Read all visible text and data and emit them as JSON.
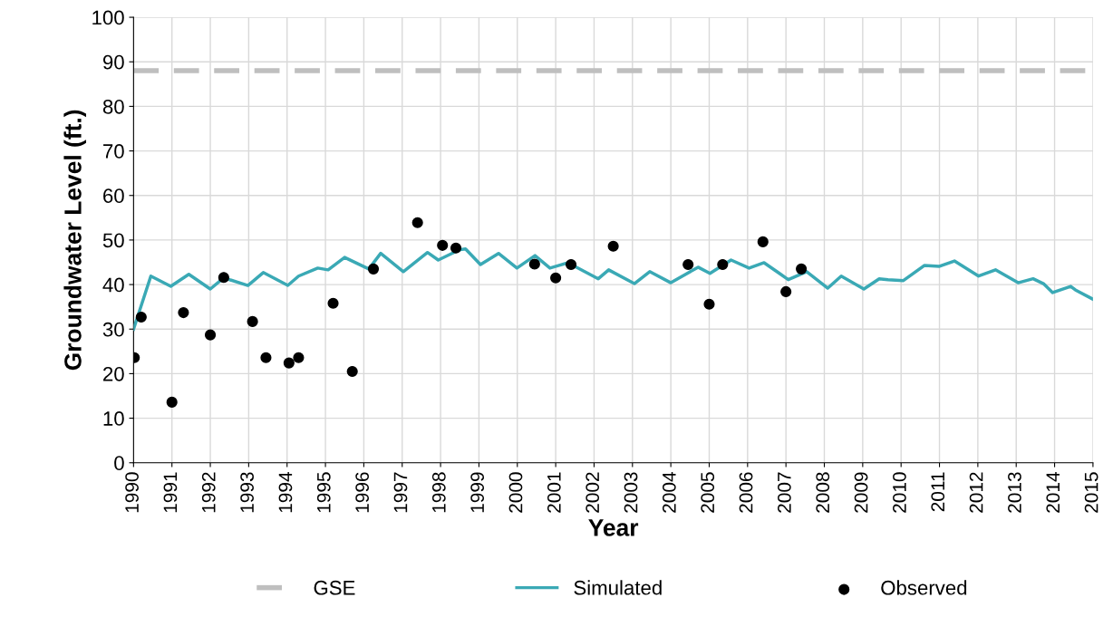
{
  "chart_data": {
    "type": "line",
    "xlabel": "Year",
    "ylabel": "Groundwater Level (ft.)",
    "xlim": [
      1990,
      2015
    ],
    "xticks": [
      1990,
      1991,
      1992,
      1993,
      1994,
      1995,
      1996,
      1997,
      1998,
      1999,
      2000,
      2001,
      2002,
      2003,
      2004,
      2005,
      2006,
      2007,
      2008,
      2009,
      2010,
      2011,
      2012,
      2013,
      2014,
      2015
    ],
    "ylim": [
      0,
      100
    ],
    "yticks": [
      0,
      10,
      20,
      30,
      40,
      50,
      60,
      70,
      80,
      90,
      100
    ],
    "grid": true,
    "legend": "bottom",
    "ref_lines": [
      {
        "axis": "y",
        "value": 88,
        "label": "GSE",
        "color": "#bfbfbf",
        "line_style": "dashed"
      }
    ],
    "series": [
      {
        "name": "Simulated",
        "color": "#3aa9b5",
        "marker": "none",
        "line_style": "solid",
        "x": [
          1990.0,
          1990.45,
          1990.97,
          1991.44,
          1992.0,
          1992.35,
          1992.98,
          1993.38,
          1994.02,
          1994.3,
          1994.8,
          1995.07,
          1995.5,
          1996.13,
          1996.44,
          1997.03,
          1997.66,
          1997.94,
          1998.49,
          1998.65,
          1999.04,
          1999.51,
          1999.99,
          2000.46,
          2000.85,
          2001.09,
          2001.32,
          2002.11,
          2002.38,
          2003.05,
          2003.45,
          2004.0,
          2004.71,
          2005.02,
          2005.57,
          2006.04,
          2006.43,
          2006.83,
          2007.06,
          2007.54,
          2008.09,
          2008.44,
          2009.03,
          2009.43,
          2009.66,
          2010.06,
          2010.61,
          2011.0,
          2011.39,
          2012.02,
          2012.46,
          2013.05,
          2013.44,
          2013.71,
          2013.95,
          2014.42,
          2014.54,
          2014.98
        ],
        "values": [
          30,
          41.9,
          39.6,
          42.3,
          39.0,
          41.5,
          39.8,
          42.7,
          39.8,
          41.9,
          43.7,
          43.3,
          46.1,
          43.5,
          47.0,
          42.9,
          47.2,
          45.5,
          47.8,
          48.0,
          44.5,
          47.0,
          43.7,
          46.5,
          43.7,
          44.3,
          44.9,
          41.3,
          43.3,
          40.2,
          42.9,
          40.4,
          43.9,
          42.5,
          45.5,
          43.7,
          44.9,
          42.5,
          41.1,
          42.9,
          39.2,
          41.9,
          39.0,
          41.3,
          41.1,
          40.9,
          44.3,
          44.1,
          45.3,
          41.9,
          43.3,
          40.4,
          41.3,
          40.2,
          38.2,
          39.6,
          38.8,
          36.8
        ]
      },
      {
        "name": "Observed",
        "type": "scatter",
        "color": "#000000",
        "marker": "circle",
        "x": [
          1990.02,
          1990.2,
          1991.0,
          1991.3,
          1992.0,
          1992.35,
          1993.1,
          1993.45,
          1994.05,
          1994.3,
          1995.2,
          1995.7,
          1996.25,
          1997.4,
          1998.05,
          1998.4,
          2000.45,
          2001.0,
          2001.4,
          2002.5,
          2004.45,
          2005.0,
          2005.35,
          2006.4,
          2007.0,
          2007.4
        ],
        "values": [
          23.6,
          32.7,
          13.6,
          33.7,
          28.7,
          41.6,
          31.7,
          23.6,
          22.4,
          23.6,
          35.8,
          20.5,
          43.5,
          53.9,
          48.8,
          48.2,
          44.6,
          41.5,
          44.5,
          48.6,
          44.5,
          35.6,
          44.5,
          49.6,
          38.4,
          43.5
        ]
      }
    ]
  }
}
